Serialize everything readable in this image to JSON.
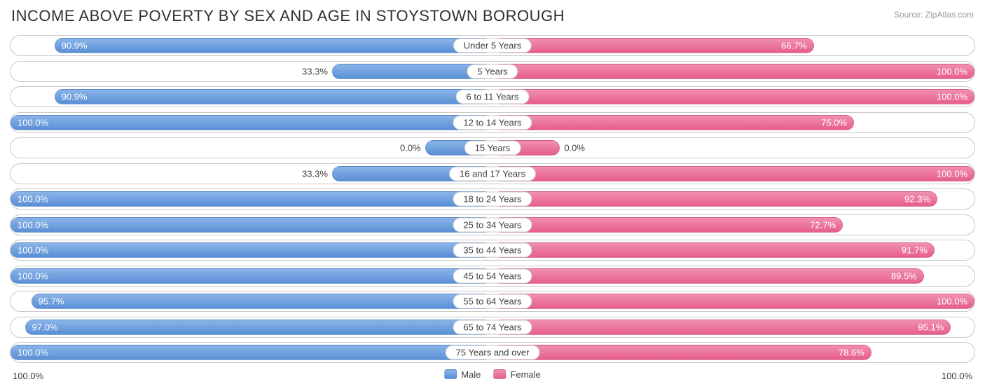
{
  "title": "INCOME ABOVE POVERTY BY SEX AND AGE IN STOYSTOWN BOROUGH",
  "source": "Source: ZipAtlas.com",
  "colors": {
    "male_top": "#8ab4e8",
    "male_bottom": "#5a8fd6",
    "female_top": "#f08fb0",
    "female_bottom": "#e75d8d",
    "row_border": "#c9c9c9",
    "background": "#ffffff",
    "text": "#404040",
    "title_text": "#303030",
    "source_text": "#9a9a9a"
  },
  "chart": {
    "type": "diverging-bar",
    "axis_max": 100.0,
    "min_bar_pct": 14.0,
    "label_inside_threshold": 50.0,
    "categories": [
      {
        "label": "Under 5 Years",
        "male": 90.9,
        "female": 66.7
      },
      {
        "label": "5 Years",
        "male": 33.3,
        "female": 100.0
      },
      {
        "label": "6 to 11 Years",
        "male": 90.9,
        "female": 100.0
      },
      {
        "label": "12 to 14 Years",
        "male": 100.0,
        "female": 75.0
      },
      {
        "label": "15 Years",
        "male": 0.0,
        "female": 0.0
      },
      {
        "label": "16 and 17 Years",
        "male": 33.3,
        "female": 100.0
      },
      {
        "label": "18 to 24 Years",
        "male": 100.0,
        "female": 92.3
      },
      {
        "label": "25 to 34 Years",
        "male": 100.0,
        "female": 72.7
      },
      {
        "label": "35 to 44 Years",
        "male": 100.0,
        "female": 91.7
      },
      {
        "label": "45 to 54 Years",
        "male": 100.0,
        "female": 89.5
      },
      {
        "label": "55 to 64 Years",
        "male": 95.7,
        "female": 100.0
      },
      {
        "label": "65 to 74 Years",
        "male": 97.0,
        "female": 95.1
      },
      {
        "label": "75 Years and over",
        "male": 100.0,
        "female": 78.6
      }
    ]
  },
  "legend": {
    "male": "Male",
    "female": "Female"
  },
  "axis": {
    "left": "100.0%",
    "right": "100.0%"
  }
}
